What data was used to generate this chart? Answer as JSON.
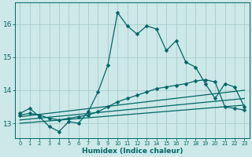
{
  "xlabel": "Humidex (Indice chaleur)",
  "bg_color": "#cce8e8",
  "grid_color": "#aacccc",
  "line_color": "#006666",
  "xlim": [
    -0.5,
    23.5
  ],
  "ylim": [
    12.55,
    16.65
  ],
  "x": [
    0,
    1,
    2,
    3,
    4,
    5,
    6,
    7,
    8,
    9,
    10,
    11,
    12,
    13,
    14,
    15,
    16,
    17,
    18,
    19,
    20,
    21,
    22,
    23
  ],
  "line1": [
    13.3,
    13.45,
    13.2,
    12.9,
    12.75,
    13.05,
    13.0,
    13.35,
    13.95,
    14.75,
    16.35,
    15.95,
    15.7,
    15.95,
    15.85,
    15.2,
    15.5,
    14.85,
    14.7,
    14.2,
    13.75,
    14.2,
    14.1,
    13.5
  ],
  "line2": [
    13.25,
    13.3,
    13.25,
    13.15,
    13.1,
    13.15,
    13.2,
    13.25,
    13.35,
    13.5,
    13.65,
    13.75,
    13.85,
    13.95,
    14.05,
    14.1,
    14.15,
    14.2,
    14.28,
    14.32,
    14.25,
    13.5,
    13.45,
    13.4
  ],
  "line3_x": [
    0,
    23
  ],
  "line3_y": [
    13.2,
    14.0
  ],
  "line4_x": [
    0,
    23
  ],
  "line4_y": [
    13.1,
    13.75
  ],
  "line5_x": [
    0,
    23
  ],
  "line5_y": [
    13.0,
    13.55
  ],
  "yticks": [
    13,
    14,
    15,
    16
  ],
  "xticks": [
    0,
    1,
    2,
    3,
    4,
    5,
    6,
    7,
    8,
    9,
    10,
    11,
    12,
    13,
    14,
    15,
    16,
    17,
    18,
    19,
    20,
    21,
    22,
    23
  ]
}
